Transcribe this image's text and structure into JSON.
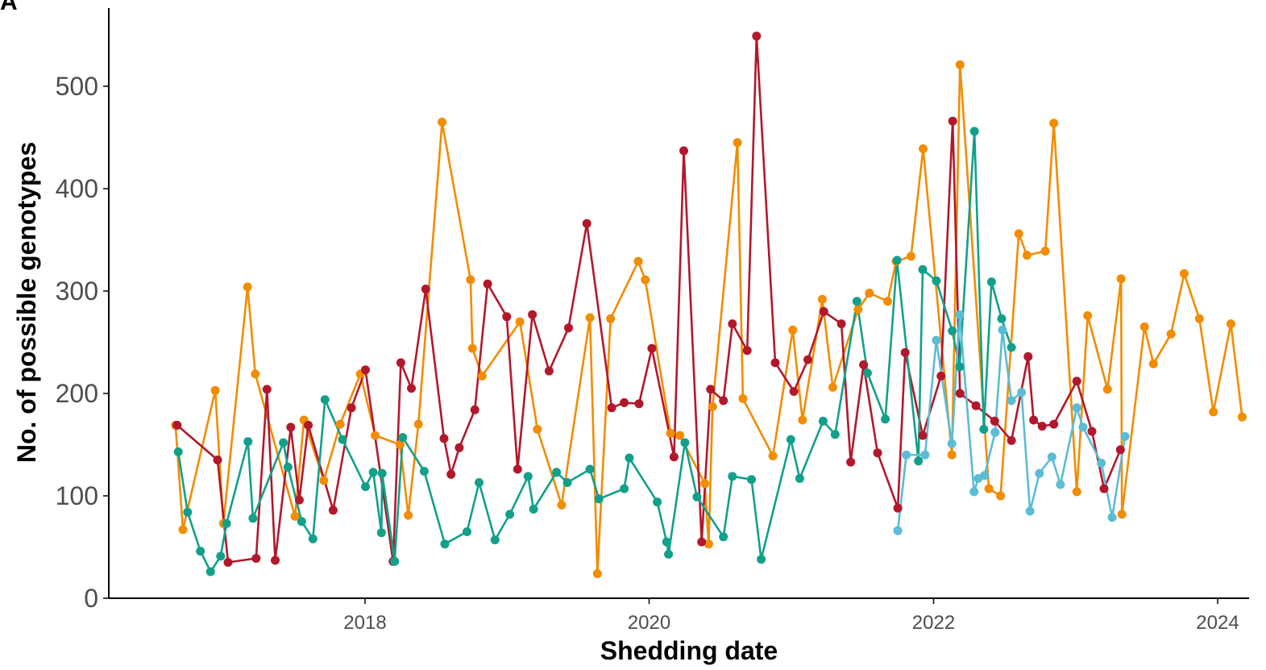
{
  "panel_label": "A",
  "chart_data": {
    "type": "line",
    "title": "",
    "xlabel": "Shedding date",
    "ylabel": "No. of possible genotypes",
    "x_ticks": [
      "2018",
      "2020",
      "2022",
      "2024"
    ],
    "y_ticks": [
      "0",
      "100",
      "200",
      "300",
      "400",
      "500"
    ],
    "ylim": [
      0,
      560
    ],
    "xlim": [
      "2016-05-01",
      "2024-03-15"
    ],
    "grid": false,
    "legend": "none",
    "series": [
      {
        "color": "#f28c00",
        "points": [
          [
            "2016-09-01",
            169
          ],
          [
            "2016-09-20",
            67
          ],
          [
            "2016-12-12",
            203
          ],
          [
            "2017-01-02",
            73
          ],
          [
            "2017-03-05",
            304
          ],
          [
            "2017-03-25",
            219
          ],
          [
            "2017-07-05",
            80
          ],
          [
            "2017-07-28",
            174
          ],
          [
            "2017-09-17",
            115
          ],
          [
            "2017-10-29",
            170
          ],
          [
            "2017-12-20",
            219
          ],
          [
            "2018-01-27",
            159
          ],
          [
            "2018-04-01",
            150
          ],
          [
            "2018-04-22",
            81
          ],
          [
            "2018-05-18",
            170
          ],
          [
            "2018-07-18",
            465
          ],
          [
            "2018-09-29",
            311
          ],
          [
            "2018-10-04",
            244
          ],
          [
            "2018-10-29",
            217
          ],
          [
            "2019-02-03",
            270
          ],
          [
            "2019-03-20",
            165
          ],
          [
            "2019-05-21",
            91
          ],
          [
            "2019-08-02",
            274
          ],
          [
            "2019-08-21",
            24
          ],
          [
            "2019-09-24",
            273
          ],
          [
            "2019-12-04",
            329
          ],
          [
            "2019-12-22",
            311
          ],
          [
            "2020-02-25",
            161
          ],
          [
            "2020-03-20",
            159
          ],
          [
            "2020-05-23",
            112
          ],
          [
            "2020-06-02",
            53
          ],
          [
            "2020-06-12",
            187
          ],
          [
            "2020-08-15",
            445
          ],
          [
            "2020-08-29",
            195
          ],
          [
            "2020-11-14",
            139
          ],
          [
            "2021-01-04",
            262
          ],
          [
            "2021-01-29",
            174
          ],
          [
            "2021-03-21",
            292
          ],
          [
            "2021-04-17",
            206
          ],
          [
            "2021-06-21",
            282
          ],
          [
            "2021-07-20",
            298
          ],
          [
            "2021-09-05",
            290
          ],
          [
            "2021-09-27",
            329
          ],
          [
            "2021-11-04",
            334
          ],
          [
            "2021-12-05",
            439
          ],
          [
            "2022-02-17",
            140
          ],
          [
            "2022-03-10",
            521
          ],
          [
            "2022-05-23",
            107
          ],
          [
            "2022-06-22",
            100
          ],
          [
            "2022-08-08",
            356
          ],
          [
            "2022-08-29",
            335
          ],
          [
            "2022-10-15",
            339
          ],
          [
            "2022-11-06",
            464
          ],
          [
            "2023-01-04",
            104
          ],
          [
            "2023-02-01",
            276
          ],
          [
            "2023-03-24",
            204
          ],
          [
            "2023-04-28",
            312
          ],
          [
            "2023-04-30",
            82
          ],
          [
            "2023-06-27",
            265
          ],
          [
            "2023-07-20",
            229
          ],
          [
            "2023-09-03",
            258
          ],
          [
            "2023-10-07",
            317
          ],
          [
            "2023-11-15",
            273
          ],
          [
            "2023-12-21",
            182
          ],
          [
            "2024-02-04",
            268
          ],
          [
            "2024-03-04",
            177
          ]
        ]
      },
      {
        "color": "#b2182b",
        "points": [
          [
            "2016-09-05",
            169
          ],
          [
            "2016-12-18",
            135
          ],
          [
            "2017-01-14",
            35
          ],
          [
            "2017-03-27",
            39
          ],
          [
            "2017-04-24",
            204
          ],
          [
            "2017-05-15",
            37
          ],
          [
            "2017-06-24",
            167
          ],
          [
            "2017-07-16",
            96
          ],
          [
            "2017-08-08",
            169
          ],
          [
            "2017-10-11",
            86
          ],
          [
            "2017-11-27",
            186
          ],
          [
            "2018-01-02",
            223
          ],
          [
            "2018-03-14",
            36
          ],
          [
            "2018-04-03",
            230
          ],
          [
            "2018-04-30",
            205
          ],
          [
            "2018-06-06",
            302
          ],
          [
            "2018-07-23",
            156
          ],
          [
            "2018-08-10",
            121
          ],
          [
            "2018-08-31",
            147
          ],
          [
            "2018-10-10",
            184
          ],
          [
            "2018-11-12",
            307
          ],
          [
            "2018-12-31",
            275
          ],
          [
            "2019-01-28",
            126
          ],
          [
            "2019-03-07",
            277
          ],
          [
            "2019-04-19",
            222
          ],
          [
            "2019-06-08",
            264
          ],
          [
            "2019-07-25",
            366
          ],
          [
            "2019-09-27",
            186
          ],
          [
            "2019-10-29",
            191
          ],
          [
            "2019-12-06",
            190
          ],
          [
            "2020-01-08",
            244
          ],
          [
            "2020-03-05",
            138
          ],
          [
            "2020-03-30",
            437
          ],
          [
            "2020-05-15",
            55
          ],
          [
            "2020-06-07",
            204
          ],
          [
            "2020-07-10",
            193
          ],
          [
            "2020-08-02",
            268
          ],
          [
            "2020-09-09",
            242
          ],
          [
            "2020-10-03",
            549
          ],
          [
            "2020-11-20",
            230
          ],
          [
            "2021-01-07",
            202
          ],
          [
            "2021-02-12",
            233
          ],
          [
            "2021-03-25",
            280
          ],
          [
            "2021-05-09",
            268
          ],
          [
            "2021-06-02",
            133
          ],
          [
            "2021-07-05",
            228
          ],
          [
            "2021-08-10",
            142
          ],
          [
            "2021-10-01",
            88
          ],
          [
            "2021-10-20",
            240
          ],
          [
            "2021-12-04",
            159
          ],
          [
            "2022-01-20",
            217
          ],
          [
            "2022-02-19",
            466
          ],
          [
            "2022-03-10",
            200
          ],
          [
            "2022-04-20",
            188
          ],
          [
            "2022-06-07",
            173
          ],
          [
            "2022-07-20",
            154
          ],
          [
            "2022-09-01",
            236
          ],
          [
            "2022-09-15",
            174
          ],
          [
            "2022-10-07",
            168
          ],
          [
            "2022-11-06",
            170
          ],
          [
            "2023-01-04",
            212
          ],
          [
            "2023-02-12",
            163
          ],
          [
            "2023-03-15",
            107
          ],
          [
            "2023-04-26",
            145
          ]
        ]
      },
      {
        "color": "#12a08a",
        "points": [
          [
            "2016-09-08",
            143
          ],
          [
            "2016-10-02",
            84
          ],
          [
            "2016-11-04",
            46
          ],
          [
            "2016-11-30",
            26
          ],
          [
            "2016-12-26",
            41
          ],
          [
            "2017-01-10",
            73
          ],
          [
            "2017-03-06",
            153
          ],
          [
            "2017-03-19",
            78
          ],
          [
            "2017-06-05",
            152
          ],
          [
            "2017-06-17",
            128
          ],
          [
            "2017-07-22",
            75
          ],
          [
            "2017-08-20",
            58
          ],
          [
            "2017-09-20",
            194
          ],
          [
            "2017-11-04",
            155
          ],
          [
            "2018-01-02",
            109
          ],
          [
            "2018-01-22",
            123
          ],
          [
            "2018-02-12",
            64
          ],
          [
            "2018-02-14",
            122
          ],
          [
            "2018-03-18",
            36
          ],
          [
            "2018-04-08",
            157
          ],
          [
            "2018-06-02",
            124
          ],
          [
            "2018-07-25",
            53
          ],
          [
            "2018-09-20",
            65
          ],
          [
            "2018-10-21",
            113
          ],
          [
            "2018-12-01",
            57
          ],
          [
            "2019-01-08",
            82
          ],
          [
            "2019-02-24",
            119
          ],
          [
            "2019-03-10",
            87
          ],
          [
            "2019-05-08",
            123
          ],
          [
            "2019-06-05",
            113
          ],
          [
            "2019-08-02",
            126
          ],
          [
            "2019-08-25",
            97
          ],
          [
            "2019-10-29",
            107
          ],
          [
            "2019-11-11",
            137
          ],
          [
            "2020-01-22",
            94
          ],
          [
            "2020-02-15",
            55
          ],
          [
            "2020-02-20",
            43
          ],
          [
            "2020-04-02",
            152
          ],
          [
            "2020-05-03",
            99
          ],
          [
            "2020-07-10",
            60
          ],
          [
            "2020-08-02",
            119
          ],
          [
            "2020-09-20",
            116
          ],
          [
            "2020-10-15",
            38
          ],
          [
            "2020-12-30",
            155
          ],
          [
            "2021-01-22",
            117
          ],
          [
            "2021-03-23",
            173
          ],
          [
            "2021-04-23",
            160
          ],
          [
            "2021-06-18",
            290
          ],
          [
            "2021-07-15",
            220
          ],
          [
            "2021-08-30",
            175
          ],
          [
            "2021-09-29",
            330
          ],
          [
            "2021-11-23",
            134
          ],
          [
            "2021-12-04",
            321
          ],
          [
            "2022-01-08",
            310
          ],
          [
            "2022-02-18",
            261
          ],
          [
            "2022-03-09",
            226
          ],
          [
            "2022-04-16",
            456
          ],
          [
            "2022-05-10",
            165
          ],
          [
            "2022-05-30",
            309
          ],
          [
            "2022-06-25",
            273
          ],
          [
            "2022-07-20",
            245
          ]
        ]
      },
      {
        "color": "#5bbcd6",
        "points": [
          [
            "2021-10-01",
            66
          ],
          [
            "2021-10-23",
            140
          ],
          [
            "2021-12-10",
            140
          ],
          [
            "2022-01-08",
            252
          ],
          [
            "2022-02-17",
            151
          ],
          [
            "2022-03-09",
            277
          ],
          [
            "2022-04-15",
            104
          ],
          [
            "2022-04-26",
            117
          ],
          [
            "2022-05-12",
            120
          ],
          [
            "2022-06-08",
            162
          ],
          [
            "2022-06-27",
            262
          ],
          [
            "2022-07-20",
            193
          ],
          [
            "2022-08-15",
            201
          ],
          [
            "2022-09-06",
            85
          ],
          [
            "2022-09-30",
            122
          ],
          [
            "2022-11-01",
            138
          ],
          [
            "2022-11-23",
            111
          ],
          [
            "2023-01-04",
            186
          ],
          [
            "2023-01-20",
            167
          ],
          [
            "2023-03-08",
            132
          ],
          [
            "2023-04-05",
            79
          ],
          [
            "2023-05-08",
            158
          ]
        ]
      }
    ]
  }
}
